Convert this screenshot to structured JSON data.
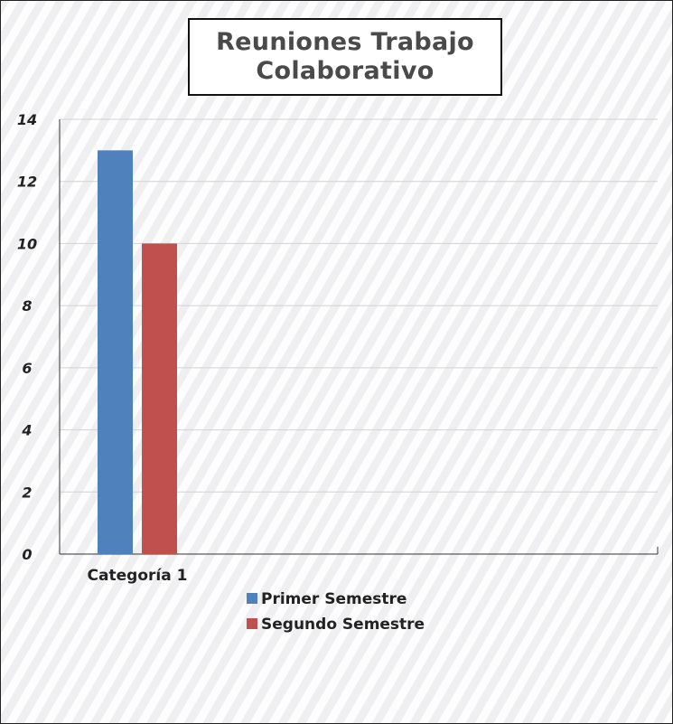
{
  "chart_data": {
    "type": "bar",
    "title": "Reuniones Trabajo\nColaborativo",
    "categories": [
      "Categoría 1"
    ],
    "series": [
      {
        "name": "Primer Semestre",
        "values": [
          13
        ],
        "color": "#4f81bd"
      },
      {
        "name": "Segundo Semestre",
        "values": [
          10
        ],
        "color": "#c0504d"
      }
    ],
    "ylim": [
      0,
      14
    ],
    "yticks": [
      0,
      2,
      4,
      6,
      8,
      10,
      12,
      14
    ],
    "grid": true,
    "legend_position": "bottom"
  }
}
